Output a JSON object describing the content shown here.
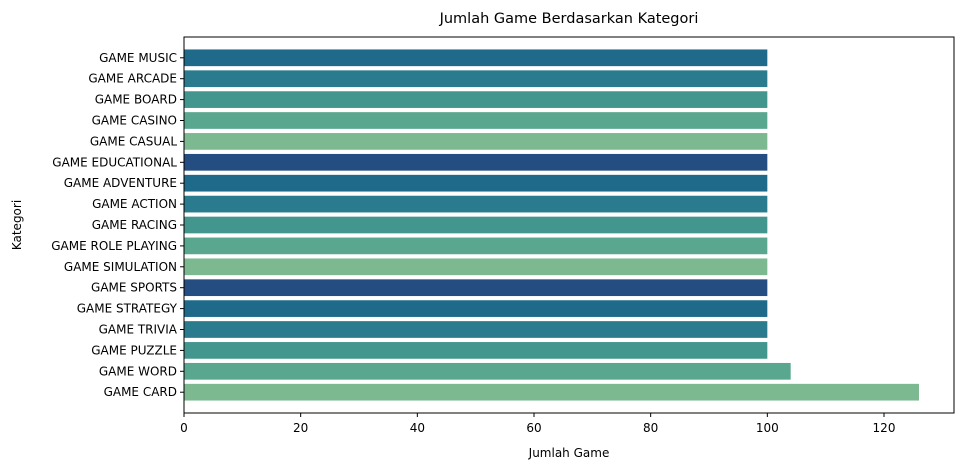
{
  "chart_data": {
    "type": "bar",
    "orientation": "horizontal",
    "title": "Jumlah Game Berdasarkan Kategori",
    "xlabel": "Jumlah Game",
    "ylabel": "Kategori",
    "xlim": [
      0,
      132
    ],
    "xticks": [
      0,
      20,
      40,
      60,
      80,
      100,
      120
    ],
    "grid": false,
    "legend": "none",
    "categories": [
      "GAME MUSIC",
      "GAME ARCADE",
      "GAME BOARD",
      "GAME CASINO",
      "GAME CASUAL",
      "GAME EDUCATIONAL",
      "GAME ADVENTURE",
      "GAME ACTION",
      "GAME RACING",
      "GAME ROLE PLAYING",
      "GAME SIMULATION",
      "GAME SPORTS",
      "GAME STRATEGY",
      "GAME TRIVIA",
      "GAME PUZZLE",
      "GAME WORD",
      "GAME CARD"
    ],
    "values": [
      100,
      100,
      100,
      100,
      100,
      100,
      100,
      100,
      100,
      100,
      100,
      100,
      100,
      100,
      100,
      104,
      126
    ],
    "colors": [
      "#1f6a8a",
      "#2a7b8e",
      "#43968e",
      "#5aa78f",
      "#7cb890",
      "#244d81",
      "#1f6a8a",
      "#2a7b8e",
      "#43968e",
      "#5aa78f",
      "#7cb890",
      "#244d81",
      "#1f6a8a",
      "#2a7b8e",
      "#43968e",
      "#5aa78f",
      "#7cb890"
    ]
  }
}
